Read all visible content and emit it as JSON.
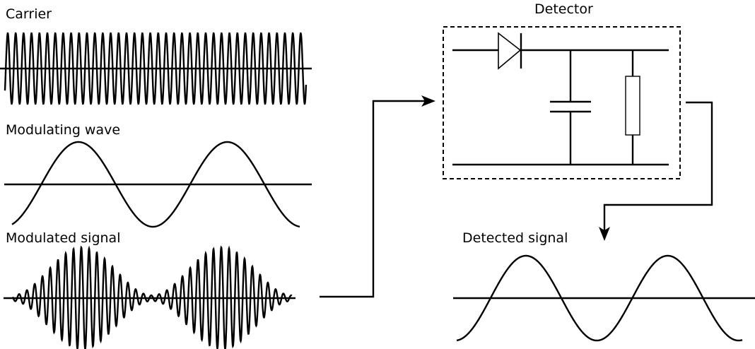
{
  "labels": {
    "carrier": "Carrier",
    "modulating": "Modulating wave",
    "modulated": "Modulated signal",
    "detector": "Detector",
    "detected": "Detected signal"
  },
  "colors": {
    "stroke": "#000000",
    "background": "#ffffff"
  }
}
